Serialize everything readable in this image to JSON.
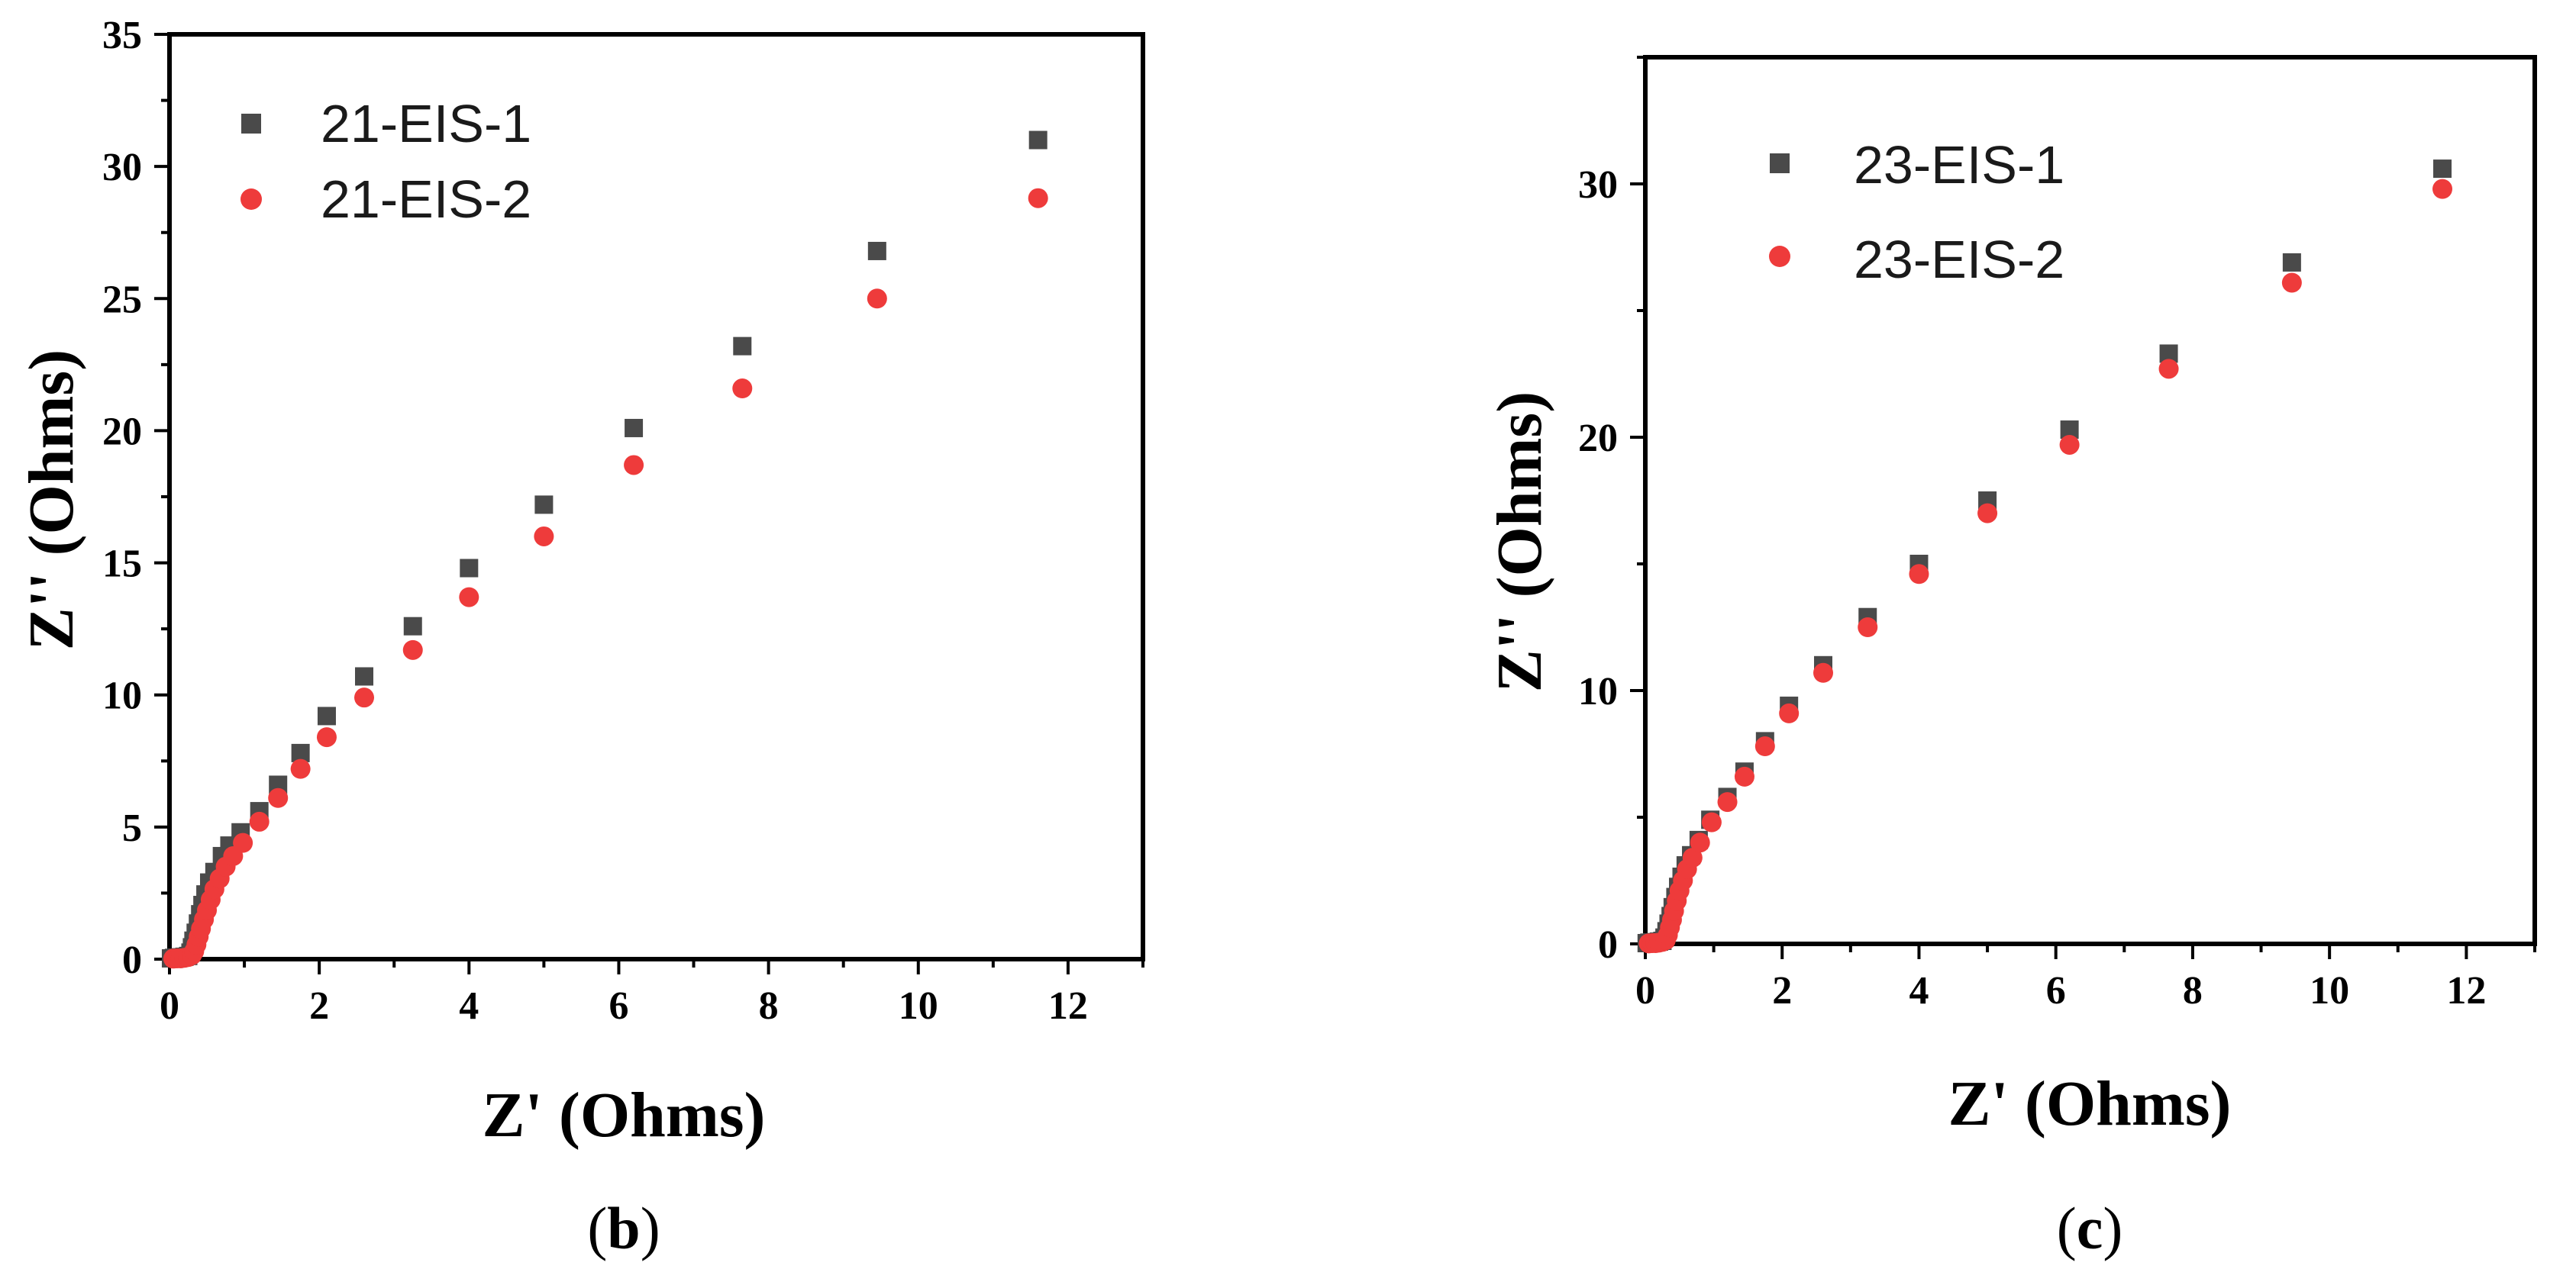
{
  "chart_data": [
    {
      "type": "scatter",
      "panel": "b",
      "caption_open": "(",
      "caption_letter": "b",
      "caption_close": ")",
      "xlabel": "Z' (Ohms)",
      "ylabel": "Z'' (Ohms)",
      "xlim": [
        0,
        13
      ],
      "ylim": [
        0,
        35
      ],
      "x_ticks": [
        0,
        2,
        4,
        6,
        8,
        10,
        12
      ],
      "y_ticks": [
        0,
        5,
        10,
        15,
        20,
        25,
        30,
        35
      ],
      "legend_position": "top-left",
      "series": [
        {
          "name": "21-EIS-1",
          "marker": "square",
          "color": "#4a4a4a",
          "points": [
            [
              0.02,
              0.03
            ],
            [
              0.06,
              0.05
            ],
            [
              0.1,
              0.06
            ],
            [
              0.15,
              0.07
            ],
            [
              0.2,
              0.09
            ],
            [
              0.25,
              0.12
            ],
            [
              0.28,
              0.25
            ],
            [
              0.3,
              0.45
            ],
            [
              0.32,
              0.7
            ],
            [
              0.35,
              1.0
            ],
            [
              0.38,
              1.35
            ],
            [
              0.41,
              1.7
            ],
            [
              0.44,
              2.05
            ],
            [
              0.48,
              2.45
            ],
            [
              0.53,
              2.9
            ],
            [
              0.6,
              3.3
            ],
            [
              0.7,
              3.9
            ],
            [
              0.8,
              4.3
            ],
            [
              0.95,
              4.8
            ],
            [
              1.2,
              5.6
            ],
            [
              1.45,
              6.6
            ],
            [
              1.75,
              7.8
            ],
            [
              2.1,
              9.2
            ],
            [
              2.6,
              10.7
            ],
            [
              3.25,
              12.6
            ],
            [
              4.0,
              14.8
            ],
            [
              5.0,
              17.2
            ],
            [
              6.2,
              20.1
            ],
            [
              7.65,
              23.2
            ],
            [
              9.45,
              26.8
            ],
            [
              11.6,
              31.0
            ]
          ]
        },
        {
          "name": "21-EIS-2",
          "marker": "circle",
          "color": "#ee3b3b",
          "points": [
            [
              0.05,
              0.02
            ],
            [
              0.1,
              0.03
            ],
            [
              0.15,
              0.03
            ],
            [
              0.2,
              0.05
            ],
            [
              0.25,
              0.08
            ],
            [
              0.3,
              0.15
            ],
            [
              0.33,
              0.3
            ],
            [
              0.36,
              0.55
            ],
            [
              0.39,
              0.85
            ],
            [
              0.42,
              1.15
            ],
            [
              0.46,
              1.5
            ],
            [
              0.5,
              1.85
            ],
            [
              0.55,
              2.25
            ],
            [
              0.6,
              2.65
            ],
            [
              0.67,
              3.05
            ],
            [
              0.75,
              3.5
            ],
            [
              0.85,
              3.9
            ],
            [
              0.98,
              4.4
            ],
            [
              1.2,
              5.2
            ],
            [
              1.45,
              6.1
            ],
            [
              1.75,
              7.2
            ],
            [
              2.1,
              8.4
            ],
            [
              2.6,
              9.9
            ],
            [
              3.25,
              11.7
            ],
            [
              4.0,
              13.7
            ],
            [
              5.0,
              16.0
            ],
            [
              6.2,
              18.7
            ],
            [
              7.65,
              21.6
            ],
            [
              9.45,
              25.0
            ],
            [
              11.6,
              28.8
            ]
          ]
        }
      ]
    },
    {
      "type": "scatter",
      "panel": "c",
      "caption_open": "(",
      "caption_letter": "c",
      "caption_close": ")",
      "xlabel": "Z' (Ohms)",
      "ylabel": "Z'' (Ohms)",
      "xlim": [
        0,
        13
      ],
      "ylim": [
        0,
        35
      ],
      "x_ticks": [
        0,
        2,
        4,
        6,
        8,
        10,
        12
      ],
      "y_ticks": [
        0,
        10,
        20,
        30
      ],
      "legend_position": "top-left",
      "series": [
        {
          "name": "23-EIS-1",
          "marker": "square",
          "color": "#4a4a4a",
          "points": [
            [
              0.02,
              0.03
            ],
            [
              0.06,
              0.05
            ],
            [
              0.1,
              0.06
            ],
            [
              0.15,
              0.07
            ],
            [
              0.2,
              0.09
            ],
            [
              0.25,
              0.12
            ],
            [
              0.28,
              0.25
            ],
            [
              0.31,
              0.5
            ],
            [
              0.34,
              0.8
            ],
            [
              0.37,
              1.1
            ],
            [
              0.4,
              1.45
            ],
            [
              0.44,
              1.85
            ],
            [
              0.48,
              2.25
            ],
            [
              0.53,
              2.65
            ],
            [
              0.59,
              3.1
            ],
            [
              0.67,
              3.5
            ],
            [
              0.78,
              4.1
            ],
            [
              0.95,
              4.9
            ],
            [
              1.2,
              5.8
            ],
            [
              1.45,
              6.8
            ],
            [
              1.75,
              8.0
            ],
            [
              2.1,
              9.4
            ],
            [
              2.6,
              11.0
            ],
            [
              3.25,
              12.9
            ],
            [
              4.0,
              15.0
            ],
            [
              5.0,
              17.5
            ],
            [
              6.2,
              20.3
            ],
            [
              7.65,
              23.3
            ],
            [
              9.45,
              26.9
            ],
            [
              11.65,
              30.6
            ]
          ]
        },
        {
          "name": "23-EIS-2",
          "marker": "circle",
          "color": "#ee3b3b",
          "points": [
            [
              0.05,
              0.02
            ],
            [
              0.1,
              0.03
            ],
            [
              0.15,
              0.03
            ],
            [
              0.2,
              0.05
            ],
            [
              0.25,
              0.08
            ],
            [
              0.3,
              0.15
            ],
            [
              0.33,
              0.35
            ],
            [
              0.36,
              0.65
            ],
            [
              0.39,
              0.95
            ],
            [
              0.42,
              1.3
            ],
            [
              0.46,
              1.7
            ],
            [
              0.5,
              2.1
            ],
            [
              0.55,
              2.5
            ],
            [
              0.61,
              2.95
            ],
            [
              0.69,
              3.4
            ],
            [
              0.8,
              4.0
            ],
            [
              0.97,
              4.8
            ],
            [
              1.2,
              5.6
            ],
            [
              1.45,
              6.6
            ],
            [
              1.75,
              7.8
            ],
            [
              2.1,
              9.1
            ],
            [
              2.6,
              10.7
            ],
            [
              3.25,
              12.5
            ],
            [
              4.0,
              14.6
            ],
            [
              5.0,
              17.0
            ],
            [
              6.2,
              19.7
            ],
            [
              7.65,
              22.7
            ],
            [
              9.45,
              26.1
            ],
            [
              11.65,
              29.8
            ]
          ]
        }
      ]
    }
  ]
}
